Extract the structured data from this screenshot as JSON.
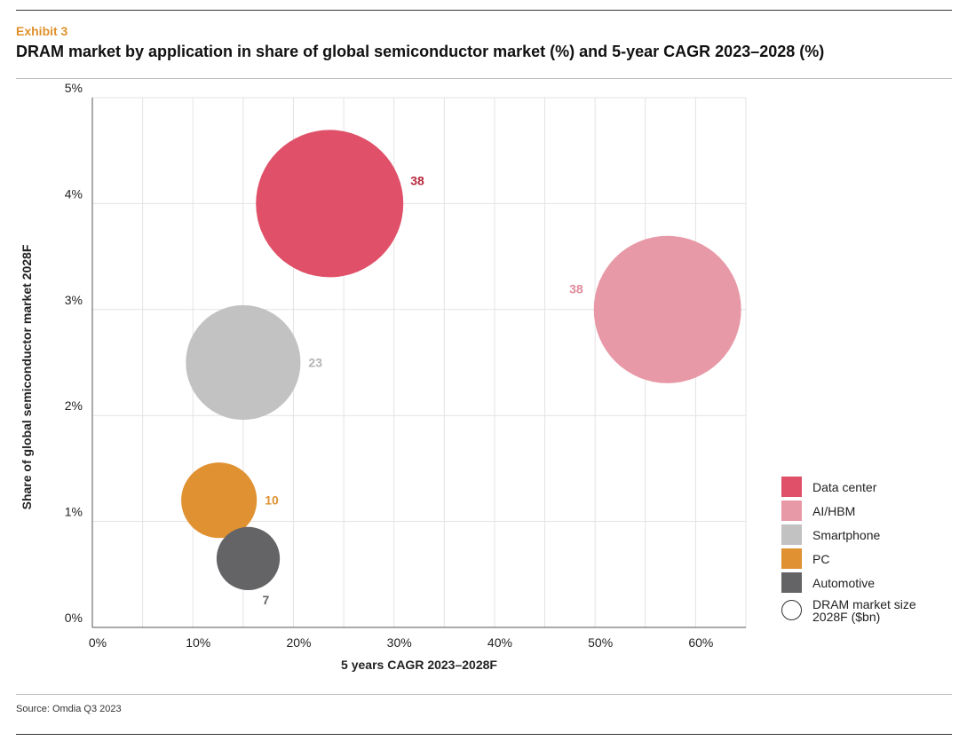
{
  "header": {
    "exhibit": "Exhibit 3",
    "title": "DRAM market by application in share of global semiconductor market (%) and 5-year CAGR 2023–2028 (%)"
  },
  "footer": {
    "source": "Source: Omdia Q3 2023"
  },
  "chart_data": {
    "type": "bubble",
    "title": "DRAM market by application in share of global semiconductor market (%) and 5-year CAGR 2023–2028 (%)",
    "xlabel": "5 years CAGR 2023–2028F",
    "ylabel": "Share of global semiconductor market 2028F",
    "xlim": [
      0,
      65
    ],
    "ylim": [
      0,
      5
    ],
    "x_ticks": [
      0,
      10,
      20,
      30,
      40,
      50,
      60
    ],
    "x_tick_labels": [
      "0%",
      "10%",
      "20%",
      "30%",
      "40%",
      "50%",
      "60%"
    ],
    "y_ticks": [
      0,
      1,
      2,
      3,
      4,
      5
    ],
    "y_tick_labels": [
      "0%",
      "1%",
      "2%",
      "3%",
      "4%",
      "5%"
    ],
    "grid": true,
    "legend_position": "right",
    "size_legend_label": "DRAM market size 2028F ($bn)",
    "series": [
      {
        "name": "Data center",
        "color": "#e05068",
        "label_color": "#b8283e",
        "label_side": "right-top",
        "x": 23.6,
        "y": 4.0,
        "size": 38,
        "label": "38"
      },
      {
        "name": "AI/HBM",
        "color": "#e899a7",
        "label_color": "#e08a9a",
        "label_side": "left-top",
        "x": 57.2,
        "y": 3.0,
        "size": 38,
        "label": "38"
      },
      {
        "name": "Smartphone",
        "color": "#c2c2c2",
        "label_color": "#b4b4b4",
        "label_side": "right",
        "x": 15.0,
        "y": 2.5,
        "size": 23,
        "label": "23"
      },
      {
        "name": "PC",
        "color": "#e09232",
        "label_color": "#e09232",
        "label_side": "right",
        "x": 12.6,
        "y": 1.2,
        "size": 10,
        "label": "10"
      },
      {
        "name": "Automotive",
        "color": "#646466",
        "label_color": "#646466",
        "label_side": "below-right",
        "x": 15.5,
        "y": 0.65,
        "size": 7,
        "label": "7"
      }
    ]
  }
}
